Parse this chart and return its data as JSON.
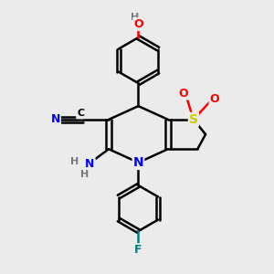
{
  "bg_color": "#ebebeb",
  "atom_colors": {
    "C": "#000000",
    "N": "#0000ff",
    "O": "#ff0000",
    "S": "#cccc00",
    "F": "#008080",
    "H": "#777777"
  },
  "bond_color": "#000000",
  "bond_width": 1.8,
  "fig_size": [
    3.0,
    3.0
  ],
  "dpi": 100
}
